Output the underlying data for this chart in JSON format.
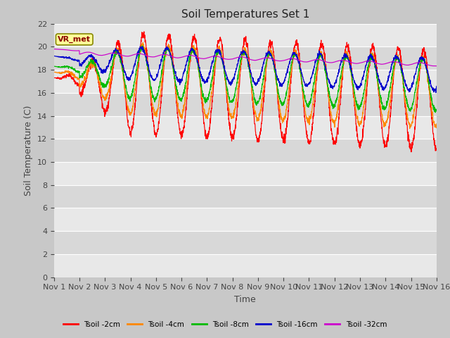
{
  "title": "Soil Temperatures Set 1",
  "xlabel": "Time",
  "ylabel": "Soil Temperature (C)",
  "ylim": [
    0,
    22
  ],
  "yticks": [
    0,
    2,
    4,
    6,
    8,
    10,
    12,
    14,
    16,
    18,
    20,
    22
  ],
  "x_labels": [
    "Nov 1",
    "Nov 2",
    "Nov 3",
    "Nov 4",
    "Nov 5",
    "Nov 6",
    "Nov 7",
    "Nov 8",
    "Nov 9",
    "Nov 10",
    "Nov 11",
    "Nov 12",
    "Nov 13",
    "Nov 14",
    "Nov 15",
    "Nov 16"
  ],
  "series_labels": [
    "Tsoil -2cm",
    "Tsoil -4cm",
    "Tsoil -8cm",
    "Tsoil -16cm",
    "Tsoil -32cm"
  ],
  "series_colors": [
    "#ff0000",
    "#ff8800",
    "#00bb00",
    "#0000cc",
    "#cc00cc"
  ],
  "annotation_text": "VR_met",
  "bg_color": "#c8c8c8",
  "plot_bg_light": "#e8e8e8",
  "plot_bg_dark": "#d8d8d8",
  "grid_color": "#ffffff",
  "title_fontsize": 11,
  "label_fontsize": 9,
  "tick_fontsize": 8
}
